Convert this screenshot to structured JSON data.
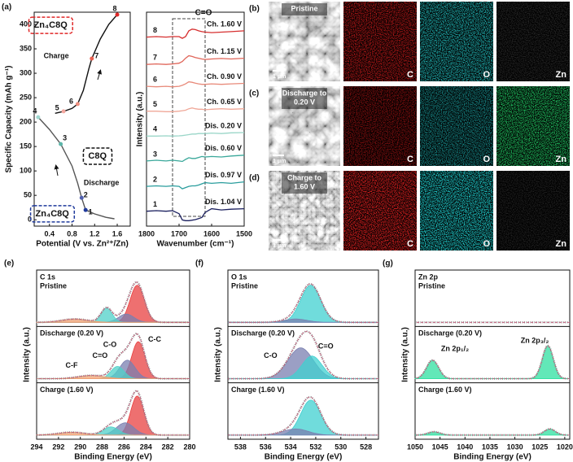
{
  "chart_data": [
    {
      "type": "line",
      "panel": "(a)",
      "xlabel": "Potential (V vs. Zn²⁺/Zn)",
      "ylabel": "Specific Capacity (mAh g⁻¹)",
      "xlim": [
        0.13,
        1.83
      ],
      "xticks": [
        0.4,
        0.8,
        1.2,
        1.6
      ],
      "ylim": [
        -13,
        425
      ],
      "yticks": [
        0,
        50,
        100,
        150,
        200,
        250,
        300,
        350,
        400
      ],
      "series": [
        {
          "color": "#555555",
          "x": [
            0.2,
            0.4,
            0.6,
            0.8,
            0.9,
            0.97,
            1.04,
            1.2,
            1.4,
            1.55
          ],
          "values": [
            210,
            185,
            155,
            110,
            75,
            45,
            20,
            12,
            5,
            2
          ]
        },
        {
          "color": "#111111",
          "x": [
            0.5,
            0.65,
            0.8,
            0.9,
            1.0,
            1.1,
            1.15,
            1.3,
            1.45,
            1.6
          ],
          "values": [
            218,
            222,
            228,
            237,
            265,
            310,
            330,
            370,
            400,
            420
          ]
        }
      ],
      "points": [
        {
          "label": "1",
          "x": 1.04,
          "y": 20,
          "color": "#1f3a9c"
        },
        {
          "label": "2",
          "x": 0.97,
          "y": 45,
          "color": "#5060b0"
        },
        {
          "label": "3",
          "x": 0.6,
          "y": 155,
          "color": "#5bb5a8"
        },
        {
          "label": "4",
          "x": 0.2,
          "y": 210,
          "color": "#a0d8d0"
        },
        {
          "label": "5",
          "x": 0.65,
          "y": 222,
          "color": "#f4a8a0"
        },
        {
          "label": "6",
          "x": 0.9,
          "y": 237,
          "color": "#ee9080"
        },
        {
          "label": "7",
          "x": 1.15,
          "y": 330,
          "color": "#e86050"
        },
        {
          "label": "8",
          "x": 1.6,
          "y": 420,
          "color": "#e02828"
        }
      ],
      "annotations": [
        {
          "text": "Zn₄C8Q",
          "x": 0.42,
          "y": 398,
          "color": "#e02828",
          "box": true
        },
        {
          "text": "Charge",
          "x": 0.52,
          "y": 335,
          "color": "#111111",
          "box": false
        },
        {
          "text": "C8Q",
          "x": 1.25,
          "y": 130,
          "color": "#111111",
          "box": true
        },
        {
          "text": "Discharge",
          "x": 1.32,
          "y": 75,
          "color": "#111111",
          "box": false
        },
        {
          "text": "Zn₄C8Q",
          "x": 0.45,
          "y": 12,
          "color": "#1f3a9c",
          "box": true
        }
      ]
    },
    {
      "type": "spectra",
      "xlabel": "Wavenumber (cm⁻¹)",
      "ylabel": "Intensity (a.u.)",
      "xlim": [
        1800,
        1500
      ],
      "xticks": [
        1800,
        1700,
        1600,
        1500
      ],
      "ylim": [
        0,
        8.6
      ],
      "highlight": {
        "label": "C=O",
        "x": [
          1720,
          1620
        ]
      },
      "x": [
        1800,
        1770,
        1740,
        1720,
        1700,
        1690,
        1680,
        1670,
        1660,
        1650,
        1640,
        1630,
        1620,
        1600,
        1570,
        1540,
        1500
      ],
      "series": [
        {
          "index_label": "1",
          "name": "Dis. 1.04 V",
          "color": "#1a1f5e",
          "values": [
            0.6,
            0.62,
            0.6,
            0.62,
            0.5,
            0.25,
            0.22,
            0.22,
            0.24,
            0.26,
            0.3,
            0.35,
            0.55,
            0.7,
            0.65,
            0.68,
            0.7
          ]
        },
        {
          "index_label": "2",
          "name": "Dis. 0.97 V",
          "color": "#2a9d9d",
          "values": [
            1.6,
            1.62,
            1.6,
            1.62,
            1.6,
            1.5,
            1.55,
            1.6,
            1.62,
            1.62,
            1.65,
            1.7,
            1.75,
            1.72,
            1.75,
            1.72,
            1.78
          ]
        },
        {
          "index_label": "3",
          "name": "Dis. 0.60 V",
          "color": "#3aa89a",
          "values": [
            2.62,
            2.65,
            2.62,
            2.65,
            2.62,
            2.6,
            2.68,
            2.75,
            2.72,
            2.72,
            2.76,
            2.8,
            2.78,
            2.8,
            2.78,
            2.82,
            2.85
          ]
        },
        {
          "index_label": "4",
          "name": "Dis. 0.20 V",
          "color": "#9ad6c8",
          "values": [
            3.62,
            3.62,
            3.63,
            3.62,
            3.63,
            3.64,
            3.66,
            3.68,
            3.7,
            3.7,
            3.72,
            3.72,
            3.72,
            3.74,
            3.72,
            3.75,
            3.76
          ]
        },
        {
          "index_label": "5",
          "name": "Ch. 0.65 V",
          "color": "#f0a899",
          "values": [
            4.62,
            4.62,
            4.6,
            4.6,
            4.62,
            4.64,
            4.66,
            4.72,
            4.75,
            4.72,
            4.7,
            4.7,
            4.68,
            4.7,
            4.72,
            4.7,
            4.72
          ]
        },
        {
          "index_label": "6",
          "name": "Ch. 0.90 V",
          "color": "#e88a7a",
          "values": [
            5.62,
            5.6,
            5.62,
            5.6,
            5.62,
            5.66,
            5.72,
            5.8,
            5.78,
            5.75,
            5.72,
            5.7,
            5.7,
            5.72,
            5.7,
            5.72,
            5.74
          ]
        },
        {
          "index_label": "7",
          "name": "Ch. 1.15 V",
          "color": "#e0665a",
          "values": [
            6.5,
            6.52,
            6.5,
            6.52,
            6.55,
            6.62,
            6.75,
            6.85,
            6.82,
            6.78,
            6.75,
            6.72,
            6.7,
            6.72,
            6.74,
            6.72,
            6.75
          ]
        },
        {
          "index_label": "8",
          "name": "Ch. 1.60 V",
          "color": "#d62f2f",
          "values": [
            7.6,
            7.62,
            7.6,
            7.62,
            7.62,
            7.55,
            7.62,
            7.85,
            7.92,
            7.9,
            7.85,
            7.82,
            7.8,
            7.78,
            7.8,
            7.82,
            7.85
          ]
        }
      ]
    },
    {
      "type": "xps",
      "panel": "(e)",
      "title": "C 1s",
      "xlabel": "Binding Energy (eV)",
      "ylabel": "Intensity (a.u.)",
      "xlim": [
        294,
        280
      ],
      "xticks": [
        294,
        292,
        290,
        288,
        286,
        284,
        282,
        280
      ],
      "ylim": [
        -0.1,
        1.15
      ],
      "rows": [
        {
          "label": "Pristine",
          "peaks": [
            {
              "center": 284.8,
              "height": 0.9,
              "width": 0.65,
              "color": "#e84040"
            },
            {
              "center": 285.8,
              "height": 0.2,
              "width": 0.7,
              "color": "#7a7fb0"
            },
            {
              "center": 287.6,
              "height": 0.35,
              "width": 0.5,
              "color": "#4fd0c8"
            },
            {
              "center": 290.5,
              "height": 0.08,
              "width": 1.2,
              "color": "#f4a070"
            }
          ],
          "annotations": []
        },
        {
          "label": "Discharge (0.20 V)",
          "peaks": [
            {
              "center": 284.7,
              "height": 0.9,
              "width": 0.6,
              "color": "#e84040"
            },
            {
              "center": 285.7,
              "height": 0.45,
              "width": 0.7,
              "color": "#7a7fb0"
            },
            {
              "center": 286.6,
              "height": 0.3,
              "width": 0.6,
              "color": "#4fd0c8"
            },
            {
              "center": 289,
              "height": 0.08,
              "width": 1.2,
              "color": "#f4a070"
            }
          ],
          "annotations": [
            {
              "text": "C-C",
              "x": 283.2,
              "y": 0.95,
              "color": "#e03030"
            },
            {
              "text": "C-O",
              "x": 287.3,
              "y": 0.82,
              "color": "#5060a0"
            },
            {
              "text": "C=O",
              "x": 288.2,
              "y": 0.55,
              "color": "#30c8c8"
            },
            {
              "text": "C-F",
              "x": 290.8,
              "y": 0.32,
              "color": "#f08050"
            }
          ]
        },
        {
          "label": "Charge (1.60 V)",
          "peaks": [
            {
              "center": 284.8,
              "height": 0.95,
              "width": 0.6,
              "color": "#e84040"
            },
            {
              "center": 285.9,
              "height": 0.3,
              "width": 0.8,
              "color": "#7a7fb0"
            },
            {
              "center": 287.2,
              "height": 0.2,
              "width": 0.7,
              "color": "#4fd0c8"
            },
            {
              "center": 290.8,
              "height": 0.07,
              "width": 1.2,
              "color": "#f4a070"
            }
          ],
          "annotations": []
        }
      ]
    },
    {
      "type": "xps",
      "panel": "(f)",
      "title": "O 1s",
      "xlabel": "Binding Energy (eV)",
      "ylabel": "Intensity (a.u.)",
      "xlim": [
        539,
        527
      ],
      "xticks": [
        538,
        536,
        534,
        532,
        530,
        528
      ],
      "ylim": [
        -0.1,
        1.15
      ],
      "rows": [
        {
          "label": "Pristine",
          "peaks": [
            {
              "center": 532.4,
              "height": 0.9,
              "width": 0.8,
              "color": "#40d0d0"
            },
            {
              "center": 533.6,
              "height": 0.08,
              "width": 0.9,
              "color": "#7a7fb0"
            }
          ],
          "annotations": []
        },
        {
          "label": "Discharge (0.20 V)",
          "peaks": [
            {
              "center": 533.2,
              "height": 0.75,
              "width": 1.0,
              "color": "#7a7fb0"
            },
            {
              "center": 532.3,
              "height": 0.55,
              "width": 0.8,
              "color": "#40d0d0"
            }
          ],
          "annotations": [
            {
              "text": "C-O",
              "x": 535.6,
              "y": 0.55,
              "color": "#5060a0"
            },
            {
              "text": "C=O",
              "x": 531.2,
              "y": 0.78,
              "color": "#30c8c8"
            }
          ]
        },
        {
          "label": "Charge (1.60 V)",
          "peaks": [
            {
              "center": 532.4,
              "height": 0.85,
              "width": 0.8,
              "color": "#40d0d0"
            },
            {
              "center": 533.6,
              "height": 0.15,
              "width": 1.0,
              "color": "#7a7fb0"
            }
          ],
          "annotations": []
        }
      ]
    },
    {
      "type": "xps",
      "panel": "(g)",
      "title": "Zn 2p",
      "xlabel": "Binding Energy (eV)",
      "ylabel": "Intensity (a.u.)",
      "xlim": [
        1050,
        1019
      ],
      "xticks": [
        1050,
        1045,
        1040,
        1035,
        1030,
        1025,
        1020
      ],
      "ylim": [
        -0.1,
        1.15
      ],
      "rows": [
        {
          "label": "Pristine",
          "peaks": [],
          "annotations": []
        },
        {
          "label": "Discharge (0.20 V)",
          "peaks": [
            {
              "center": 1046.5,
              "height": 0.45,
              "width": 1.2,
              "color": "#2ee0a0"
            },
            {
              "center": 1023.4,
              "height": 0.8,
              "width": 1.1,
              "color": "#2ee0a0"
            }
          ],
          "annotations": [
            {
              "text": "Zn 2p₁/₂",
              "x": 1042,
              "y": 0.72,
              "color": "#2ecc8a"
            },
            {
              "text": "Zn 2p₃/₂",
              "x": 1026,
              "y": 0.92,
              "color": "#2ecc8a"
            }
          ]
        },
        {
          "label": "Charge (1.60 V)",
          "peaks": [
            {
              "center": 1046.2,
              "height": 0.08,
              "width": 1.2,
              "color": "#2ee0a0"
            },
            {
              "center": 1023,
              "height": 0.15,
              "width": 1.1,
              "color": "#2ee0a0"
            }
          ],
          "annotations": []
        }
      ]
    }
  ],
  "image_panels": [
    {
      "panel": "(b)",
      "label": [
        "Pristine"
      ],
      "scale": "1 μm",
      "maps": [
        {
          "label": "C",
          "color": "#b01818"
        },
        {
          "label": "O",
          "color": "#20b0b0"
        },
        {
          "label": "Zn",
          "color": "#262626"
        }
      ]
    },
    {
      "panel": "(c)",
      "label": [
        "Discharge to",
        "0.20 V"
      ],
      "scale": "1 μm",
      "maps": [
        {
          "label": "C",
          "color": "#801010"
        },
        {
          "label": "O",
          "color": "#188888"
        },
        {
          "label": "Zn",
          "color": "#20c060"
        }
      ]
    },
    {
      "panel": "(d)",
      "label": [
        "Charge to",
        "1.60 V"
      ],
      "scale": "1 μm",
      "maps": [
        {
          "label": "C",
          "color": "#e02020"
        },
        {
          "label": "O",
          "color": "#20d0d0"
        },
        {
          "label": "Zn",
          "color": "#202020"
        }
      ]
    }
  ]
}
